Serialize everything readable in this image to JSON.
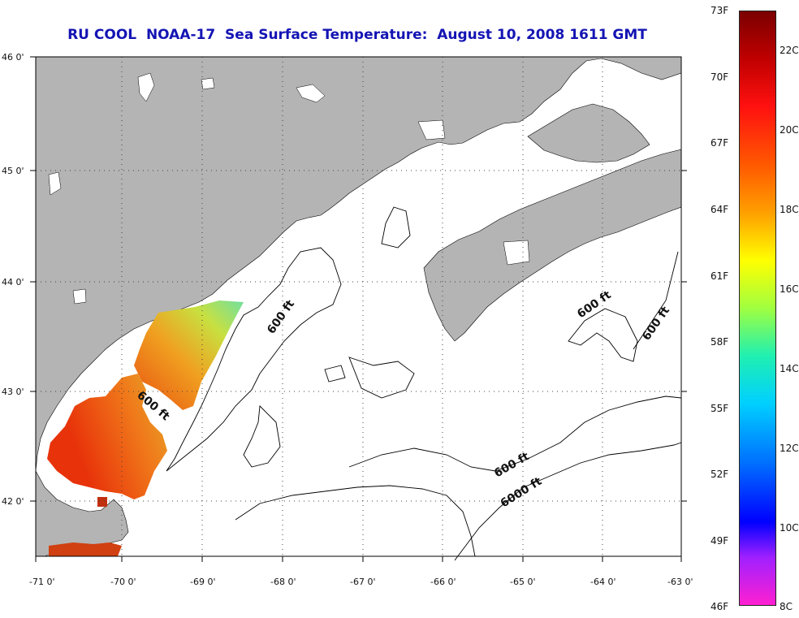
{
  "title": "RU COOL  NOAA-17  Sea Surface Temperature:  August 10, 2008 1611 GMT",
  "map": {
    "lon_ticks": [
      "-71 0'",
      "-70 0'",
      "-69 0'",
      "-68 0'",
      "-67 0'",
      "-66 0'",
      "-65 0'",
      "-64 0'",
      "-63 0'"
    ],
    "lat_ticks": [
      "46 0'",
      "45 0'",
      "44 0'",
      "43 0'",
      "42 0'"
    ],
    "contour_labels": [
      "600 ft",
      "600 ft",
      "600 ft",
      "600 ft",
      "6000 ft",
      "600 ft"
    ],
    "land_color": "#b4b4b4",
    "water_color": "#ffffff"
  },
  "colorbar": {
    "fahrenheit": [
      "73F",
      "70F",
      "67F",
      "64F",
      "61F",
      "58F",
      "55F",
      "52F",
      "49F",
      "46F"
    ],
    "celsius": [
      "22C",
      "20C",
      "18C",
      "16C",
      "14C",
      "12C",
      "10C",
      "8C"
    ]
  }
}
